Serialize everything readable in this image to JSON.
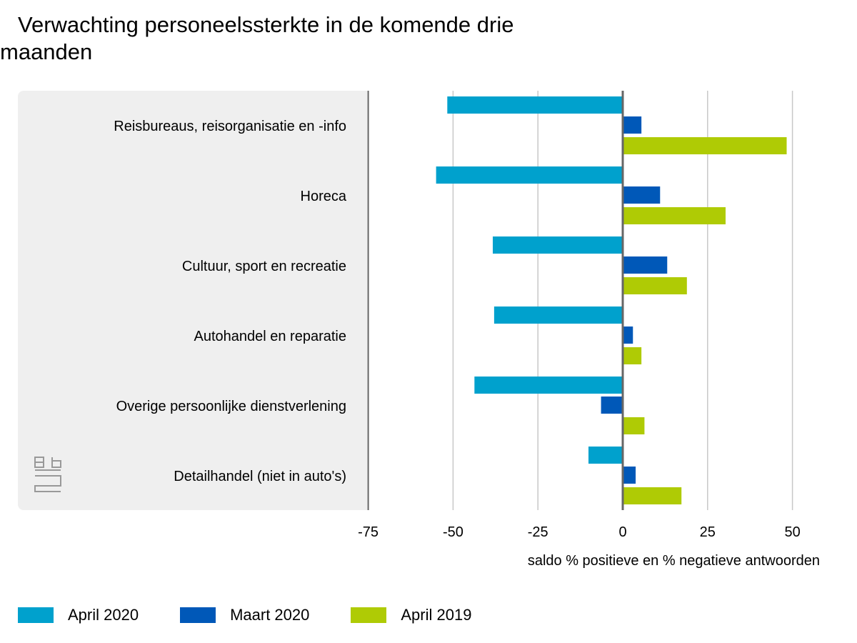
{
  "title": "Verwachting personeelssterkte in de komende drie maanden",
  "chart_data": {
    "type": "bar",
    "orientation": "horizontal",
    "title": "Verwachting personeelssterkte in de komende drie maanden",
    "xlabel": "saldo % positieve en % negatieve antwoorden",
    "ylabel": "",
    "xlim": [
      -75,
      50
    ],
    "xticks": [
      "-75",
      "-50",
      "-25",
      "0",
      "25",
      "50"
    ],
    "xtick_values": [
      -75,
      -50,
      -25,
      0,
      25,
      50
    ],
    "grid": true,
    "legend_position": "bottom",
    "categories": [
      "Reisbureaus, reisorganisatie en -info",
      "Horeca",
      "Cultuur, sport en recreatie",
      "Autohandel en reparatie",
      "Overige persoonlijke dienstverlening",
      "Detailhandel (niet in auto's)"
    ],
    "series": [
      {
        "name": "April 2020",
        "color": "#00a1cd",
        "values": [
          -51.7,
          -55.0,
          -38.3,
          -37.9,
          -43.7,
          -10.1
        ]
      },
      {
        "name": "Maart 2020",
        "color": "#0058b8",
        "values": [
          5.5,
          11.0,
          13.1,
          3.0,
          -6.4,
          3.8
        ]
      },
      {
        "name": "April 2019",
        "color": "#afcb05",
        "values": [
          48.3,
          30.3,
          18.9,
          5.5,
          6.4,
          17.3
        ]
      }
    ]
  },
  "logo": "cbs"
}
